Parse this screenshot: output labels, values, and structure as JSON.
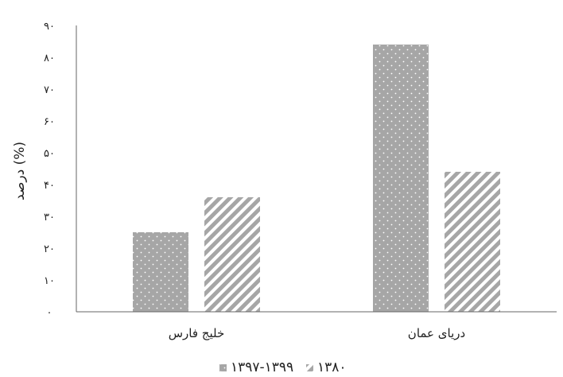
{
  "chart_data": {
    "type": "bar",
    "categories": [
      "خلیج فارس",
      "دریای عمان"
    ],
    "series": [
      {
        "name": "۱۳۹۷-۱۳۹۹",
        "values": [
          25,
          84
        ],
        "color": "#a6a6a6",
        "pattern": "dots"
      },
      {
        "name": "۱۳۸۰",
        "values": [
          36,
          44
        ],
        "color": "#a6a6a6",
        "pattern": "diagonal-stripes"
      }
    ],
    "ylabel": "درصد (%)",
    "ylim": [
      0,
      90
    ],
    "yticks": [
      0,
      10,
      20,
      30,
      40,
      50,
      60,
      70,
      80,
      90
    ],
    "ytick_labels": [
      "۰",
      "۱۰",
      "۲۰",
      "۳۰",
      "۴۰",
      "۵۰",
      "۶۰",
      "۷۰",
      "۸۰",
      "۹۰"
    ],
    "grid": false,
    "legend": {
      "placement": "bottom"
    }
  }
}
